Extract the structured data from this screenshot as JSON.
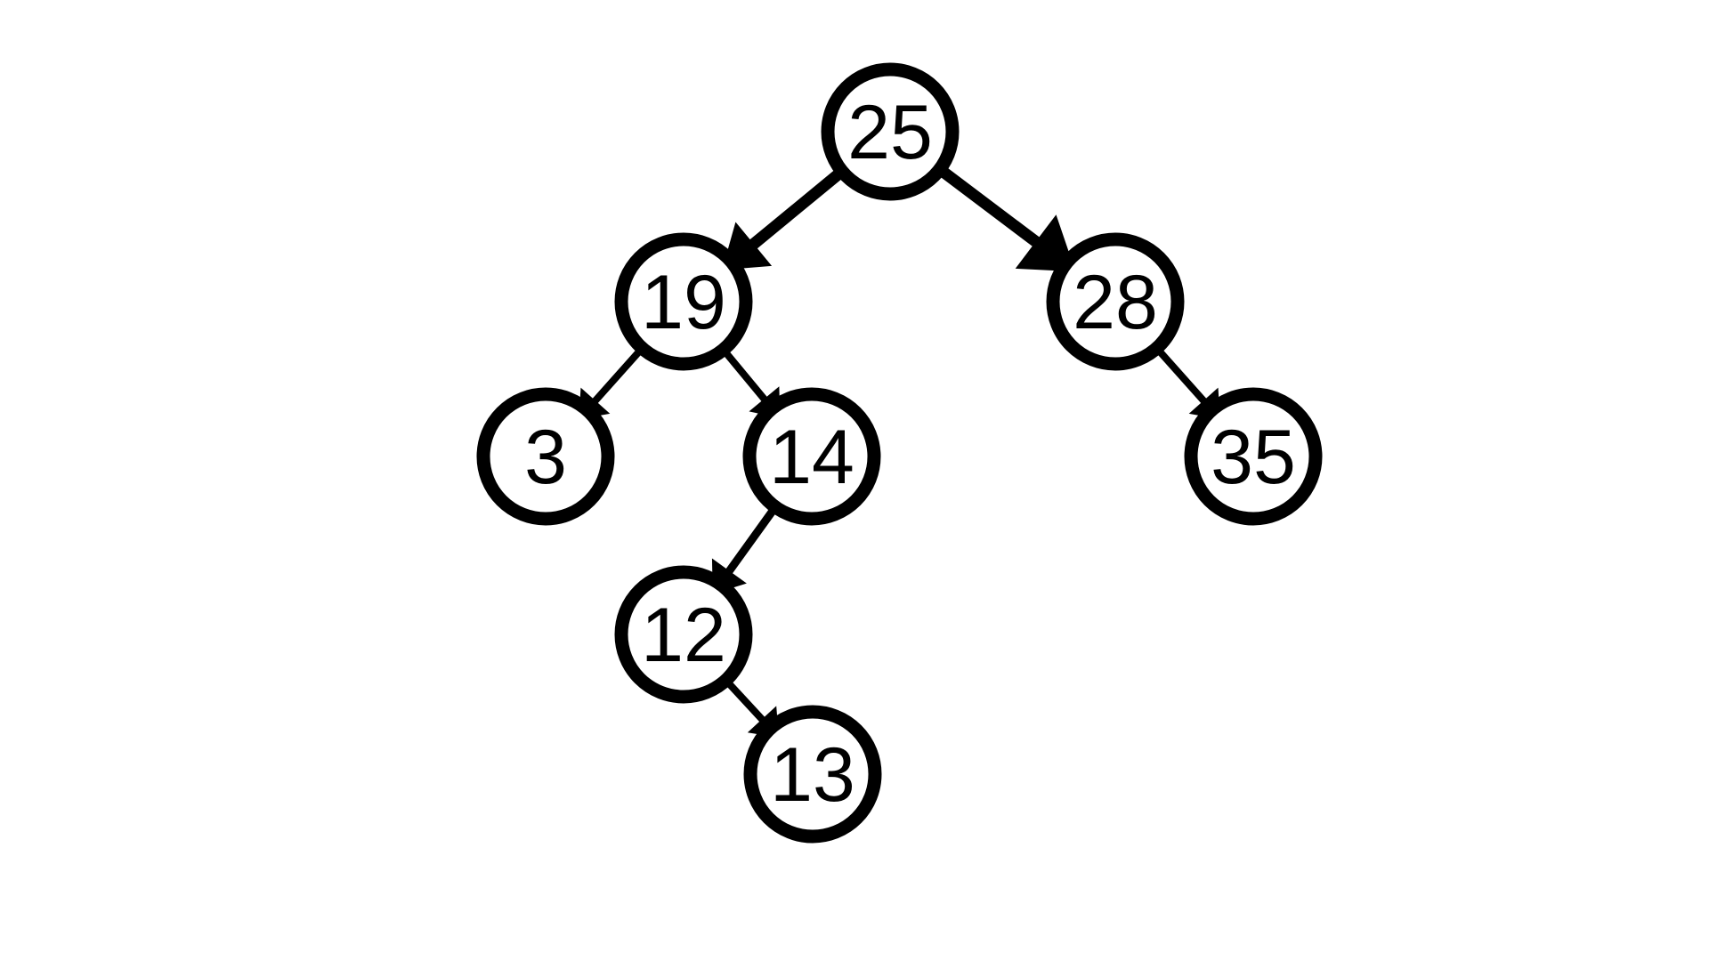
{
  "tree": {
    "nodes": [
      {
        "id": "n25",
        "label": "25"
      },
      {
        "id": "n19",
        "label": "19"
      },
      {
        "id": "n28",
        "label": "28"
      },
      {
        "id": "n3",
        "label": "3"
      },
      {
        "id": "n14",
        "label": "14"
      },
      {
        "id": "n35",
        "label": "35"
      },
      {
        "id": "n12",
        "label": "12"
      },
      {
        "id": "n13",
        "label": "13"
      }
    ],
    "edges": [
      {
        "from": "n25",
        "to": "n19"
      },
      {
        "from": "n25",
        "to": "n28"
      },
      {
        "from": "n19",
        "to": "n3"
      },
      {
        "from": "n19",
        "to": "n14"
      },
      {
        "from": "n28",
        "to": "n35"
      },
      {
        "from": "n14",
        "to": "n12"
      },
      {
        "from": "n12",
        "to": "n13"
      }
    ],
    "colors": {
      "stroke": "#000000",
      "background": "#ffffff"
    }
  }
}
